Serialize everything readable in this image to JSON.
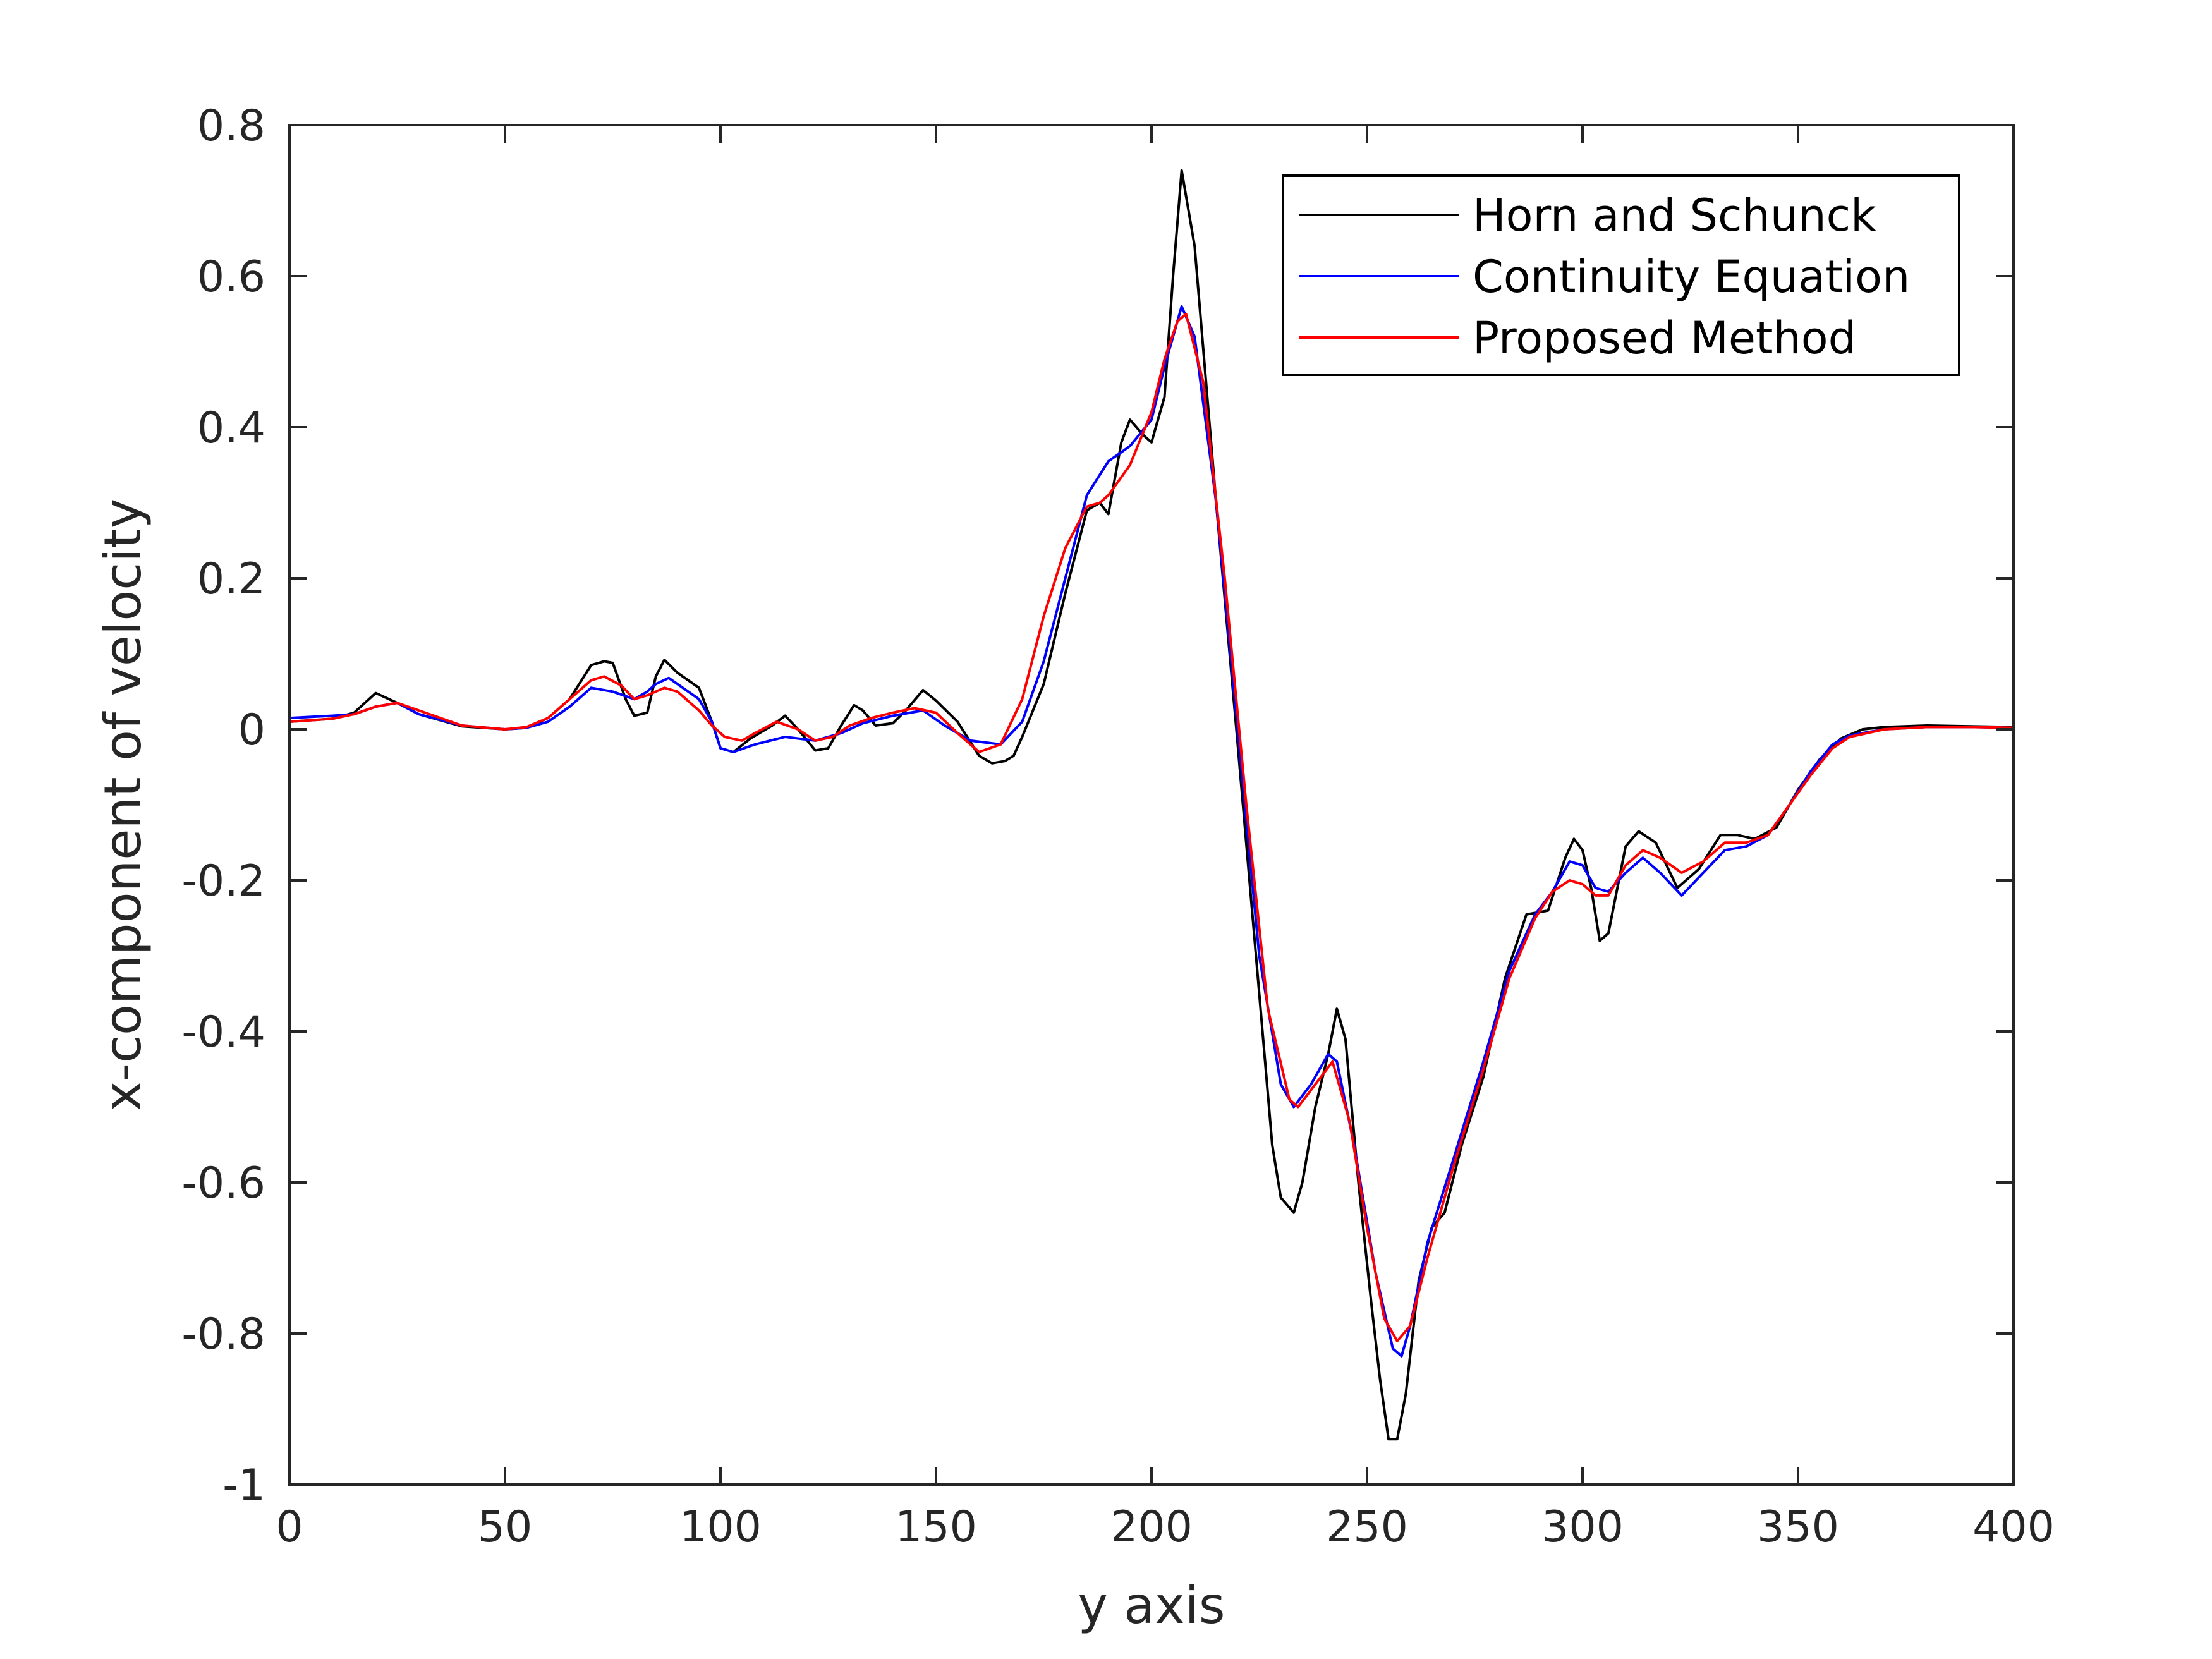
{
  "chart_data": {
    "type": "line",
    "title": "",
    "xlabel": "y axis",
    "ylabel": "x-component of velocity",
    "xlim": [
      0,
      400
    ],
    "ylim": [
      -1,
      0.8
    ],
    "xticks": [
      "0",
      "50",
      "100",
      "150",
      "200",
      "250",
      "300",
      "350",
      "400"
    ],
    "yticks": [
      "0.8",
      "0.6",
      "0.4",
      "0.2",
      "0",
      "-0.2",
      "-0.4",
      "-0.6",
      "-0.8",
      "-1"
    ],
    "grid": false,
    "legend_position": "top-right",
    "series": [
      {
        "name": "Horn and Schunck",
        "color": "#000000",
        "x": [
          0,
          10,
          15,
          20,
          25,
          30,
          40,
          50,
          55,
          60,
          65,
          70,
          73,
          75,
          78,
          80,
          83,
          85,
          87,
          90,
          95,
          98,
          100,
          103,
          107,
          112,
          115,
          118,
          122,
          125,
          128,
          131,
          133,
          136,
          140,
          143,
          147,
          150,
          155,
          160,
          163,
          166,
          168,
          170,
          175,
          180,
          185,
          188,
          190,
          193,
          195,
          198,
          200,
          203,
          205,
          207,
          210,
          215,
          220,
          225,
          228,
          230,
          233,
          235,
          238,
          241,
          243,
          245,
          248,
          251,
          253,
          255,
          257,
          259,
          262,
          265,
          268,
          272,
          277,
          282,
          287,
          292,
          296,
          298,
          300,
          302,
          304,
          306,
          310,
          313,
          317,
          322,
          327,
          332,
          336,
          340,
          345,
          350,
          355,
          360,
          365,
          370,
          380,
          390,
          400
        ],
        "y": [
          0.01,
          0.014,
          0.022,
          0.048,
          0.035,
          0.02,
          0.004,
          0.0,
          0.002,
          0.015,
          0.04,
          0.085,
          0.09,
          0.088,
          0.04,
          0.018,
          0.022,
          0.07,
          0.092,
          0.075,
          0.055,
          0.01,
          -0.025,
          -0.03,
          -0.012,
          0.005,
          0.018,
          0.0,
          -0.028,
          -0.025,
          0.005,
          0.032,
          0.025,
          0.005,
          0.008,
          0.025,
          0.052,
          0.038,
          0.01,
          -0.035,
          -0.045,
          -0.042,
          -0.035,
          -0.01,
          0.06,
          0.18,
          0.29,
          0.3,
          0.285,
          0.38,
          0.41,
          0.39,
          0.38,
          0.44,
          0.6,
          0.74,
          0.64,
          0.3,
          -0.02,
          -0.35,
          -0.55,
          -0.62,
          -0.64,
          -0.6,
          -0.5,
          -0.43,
          -0.37,
          -0.41,
          -0.6,
          -0.76,
          -0.86,
          -0.94,
          -0.94,
          -0.88,
          -0.73,
          -0.66,
          -0.64,
          -0.55,
          -0.46,
          -0.33,
          -0.245,
          -0.24,
          -0.17,
          -0.145,
          -0.16,
          -0.21,
          -0.28,
          -0.27,
          -0.155,
          -0.135,
          -0.15,
          -0.21,
          -0.185,
          -0.14,
          -0.14,
          -0.145,
          -0.13,
          -0.08,
          -0.04,
          -0.012,
          0.0,
          0.003,
          0.005,
          0.004,
          0.003
        ]
      },
      {
        "name": "Continuity Equation",
        "color": "#0000ff",
        "x": [
          0,
          10,
          15,
          20,
          25,
          30,
          40,
          50,
          55,
          60,
          65,
          70,
          75,
          80,
          83,
          85,
          88,
          90,
          95,
          98,
          100,
          103,
          108,
          115,
          122,
          128,
          133,
          140,
          147,
          152,
          158,
          165,
          170,
          175,
          180,
          185,
          190,
          195,
          200,
          203,
          207,
          210,
          215,
          220,
          225,
          230,
          233,
          237,
          241,
          243,
          247,
          252,
          256,
          258,
          260,
          264,
          270,
          277,
          283,
          289,
          293,
          297,
          300,
          303,
          306,
          310,
          314,
          318,
          323,
          328,
          333,
          338,
          343,
          348,
          353,
          358,
          362,
          370,
          380,
          390,
          400
        ],
        "y": [
          0.015,
          0.018,
          0.02,
          0.03,
          0.035,
          0.02,
          0.005,
          0.0,
          0.002,
          0.01,
          0.03,
          0.055,
          0.05,
          0.04,
          0.05,
          0.06,
          0.068,
          0.06,
          0.04,
          0.01,
          -0.025,
          -0.03,
          -0.02,
          -0.01,
          -0.015,
          -0.005,
          0.008,
          0.018,
          0.025,
          0.005,
          -0.015,
          -0.02,
          0.01,
          0.09,
          0.2,
          0.31,
          0.355,
          0.375,
          0.41,
          0.48,
          0.56,
          0.52,
          0.3,
          0.0,
          -0.3,
          -0.47,
          -0.5,
          -0.47,
          -0.43,
          -0.44,
          -0.55,
          -0.72,
          -0.82,
          -0.83,
          -0.79,
          -0.68,
          -0.57,
          -0.44,
          -0.32,
          -0.245,
          -0.215,
          -0.175,
          -0.18,
          -0.21,
          -0.215,
          -0.19,
          -0.17,
          -0.19,
          -0.22,
          -0.19,
          -0.16,
          -0.155,
          -0.14,
          -0.1,
          -0.055,
          -0.02,
          -0.008,
          0.0,
          0.003,
          0.003,
          0.002
        ]
      },
      {
        "name": "Proposed Method",
        "color": "#ff0000",
        "x": [
          0,
          10,
          15,
          20,
          25,
          30,
          40,
          50,
          55,
          60,
          65,
          70,
          73,
          77,
          80,
          83,
          87,
          90,
          95,
          98,
          101,
          105,
          108,
          113,
          118,
          122,
          126,
          130,
          135,
          140,
          145,
          150,
          155,
          160,
          165,
          170,
          175,
          180,
          185,
          188,
          190,
          195,
          200,
          203,
          206,
          208,
          212,
          217,
          222,
          227,
          232,
          234,
          238,
          242,
          246,
          250,
          254,
          257,
          260,
          264,
          270,
          277,
          283,
          289,
          293,
          297,
          300,
          303,
          306,
          310,
          314,
          318,
          323,
          328,
          333,
          338,
          343,
          348,
          353,
          358,
          362,
          370,
          380,
          390,
          400
        ],
        "y": [
          0.01,
          0.014,
          0.02,
          0.03,
          0.035,
          0.025,
          0.005,
          0.0,
          0.003,
          0.015,
          0.04,
          0.065,
          0.07,
          0.058,
          0.04,
          0.045,
          0.055,
          0.05,
          0.025,
          0.005,
          -0.01,
          -0.015,
          -0.005,
          0.01,
          0.0,
          -0.015,
          -0.01,
          0.005,
          0.015,
          0.022,
          0.028,
          0.022,
          -0.005,
          -0.03,
          -0.02,
          0.04,
          0.15,
          0.24,
          0.295,
          0.3,
          0.31,
          0.35,
          0.42,
          0.49,
          0.54,
          0.55,
          0.46,
          0.2,
          -0.1,
          -0.37,
          -0.49,
          -0.5,
          -0.47,
          -0.44,
          -0.52,
          -0.66,
          -0.78,
          -0.81,
          -0.79,
          -0.7,
          -0.58,
          -0.45,
          -0.33,
          -0.25,
          -0.215,
          -0.2,
          -0.205,
          -0.22,
          -0.22,
          -0.18,
          -0.16,
          -0.17,
          -0.19,
          -0.175,
          -0.15,
          -0.15,
          -0.14,
          -0.1,
          -0.06,
          -0.025,
          -0.01,
          0.0,
          0.003,
          0.003,
          0.002
        ]
      }
    ]
  }
}
